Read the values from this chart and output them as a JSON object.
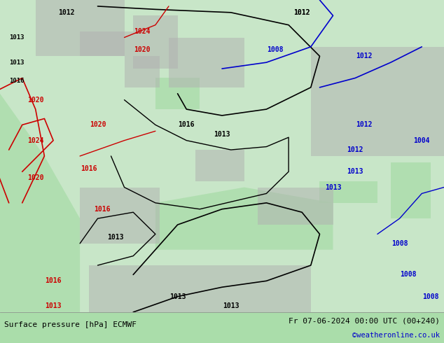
{
  "title_left": "Surface pressure [hPa] ECMWF",
  "title_right": "Fr 07-06-2024 00:00 UTC (00+240)",
  "credit": "©weatheronline.co.uk",
  "credit_color": "#0000cc",
  "bg_color": "#aaddaa",
  "land_color": "#c8e6c8",
  "sea_color": "#aaddaa",
  "border_color": "#888888",
  "fig_width": 6.34,
  "fig_height": 4.9,
  "bottom_bar_color": "#ffffff",
  "bottom_bar_height": 0.09
}
